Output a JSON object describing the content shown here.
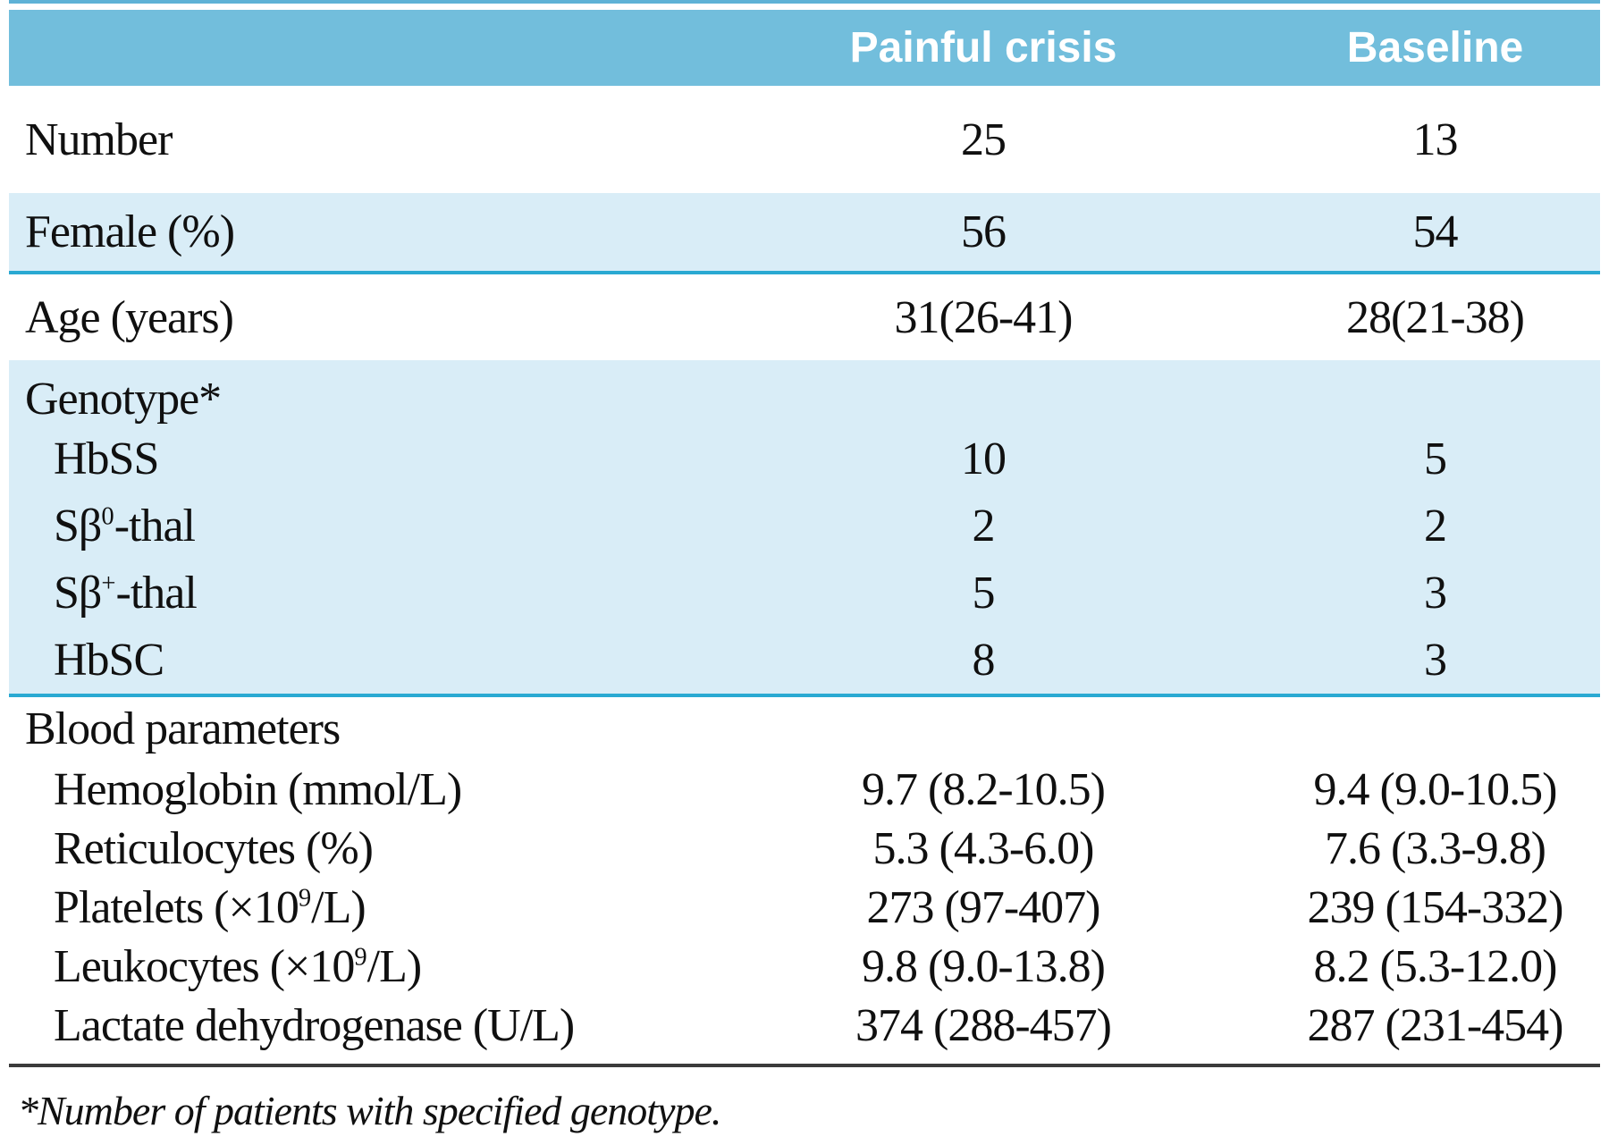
{
  "table": {
    "columns": [
      "",
      "Painful crisis",
      "Baseline"
    ],
    "rows": [
      {
        "pre": "Number",
        "sup": "",
        "post": "",
        "pc": "25",
        "bl": "13"
      },
      {
        "pre": "Female (%)",
        "sup": "",
        "post": "",
        "pc": "56",
        "bl": "54"
      },
      {
        "pre": "Age (years)",
        "sup": "",
        "post": "",
        "pc": "31(26-41)",
        "bl": "28(21-38)"
      },
      {
        "pre": "Genotype*",
        "sup": "",
        "post": "",
        "pc": "",
        "bl": ""
      },
      {
        "pre": "HbSS",
        "sup": "",
        "post": "",
        "pc": "10",
        "bl": "5"
      },
      {
        "pre": "Sβ",
        "sup": "0",
        "post": "-thal",
        "pc": "2",
        "bl": "2"
      },
      {
        "pre": "Sβ",
        "sup": "+",
        "post": "-thal",
        "pc": "5",
        "bl": "3"
      },
      {
        "pre": "HbSC",
        "sup": "",
        "post": "",
        "pc": "8",
        "bl": "3"
      },
      {
        "pre": "Blood parameters",
        "sup": "",
        "post": "",
        "pc": "",
        "bl": ""
      },
      {
        "pre": "Hemoglobin (mmol/L)",
        "sup": "",
        "post": "",
        "pc": "9.7 (8.2-10.5)",
        "bl": "9.4 (9.0-10.5)"
      },
      {
        "pre": "Reticulocytes (%)",
        "sup": "",
        "post": "",
        "pc": "5.3 (4.3-6.0)",
        "bl": "7.6 (3.3-9.8)"
      },
      {
        "pre": "Platelets (×10",
        "sup": "9",
        "post": "/L)",
        "pc": "273 (97-407)",
        "bl": "239 (154-332)"
      },
      {
        "pre": "Leukocytes (×10",
        "sup": "9",
        "post": "/L)",
        "pc": "9.8 (9.0-13.8)",
        "bl": "8.2 (5.3-12.0)"
      },
      {
        "pre": "Lactate dehydrogenase (U/L)",
        "sup": "",
        "post": "",
        "pc": "374 (288-457)",
        "bl": "287 (231-454)"
      }
    ]
  },
  "footnote": "*Number of patients with specified genotype.",
  "colors": {
    "header_bg": "#72bedc",
    "band_bg": "#d9edf7",
    "rule_cyan": "#2aa9d2",
    "rule_dark": "#3b3b3b",
    "header_text": "#ffffff",
    "body_text": "#101010"
  }
}
